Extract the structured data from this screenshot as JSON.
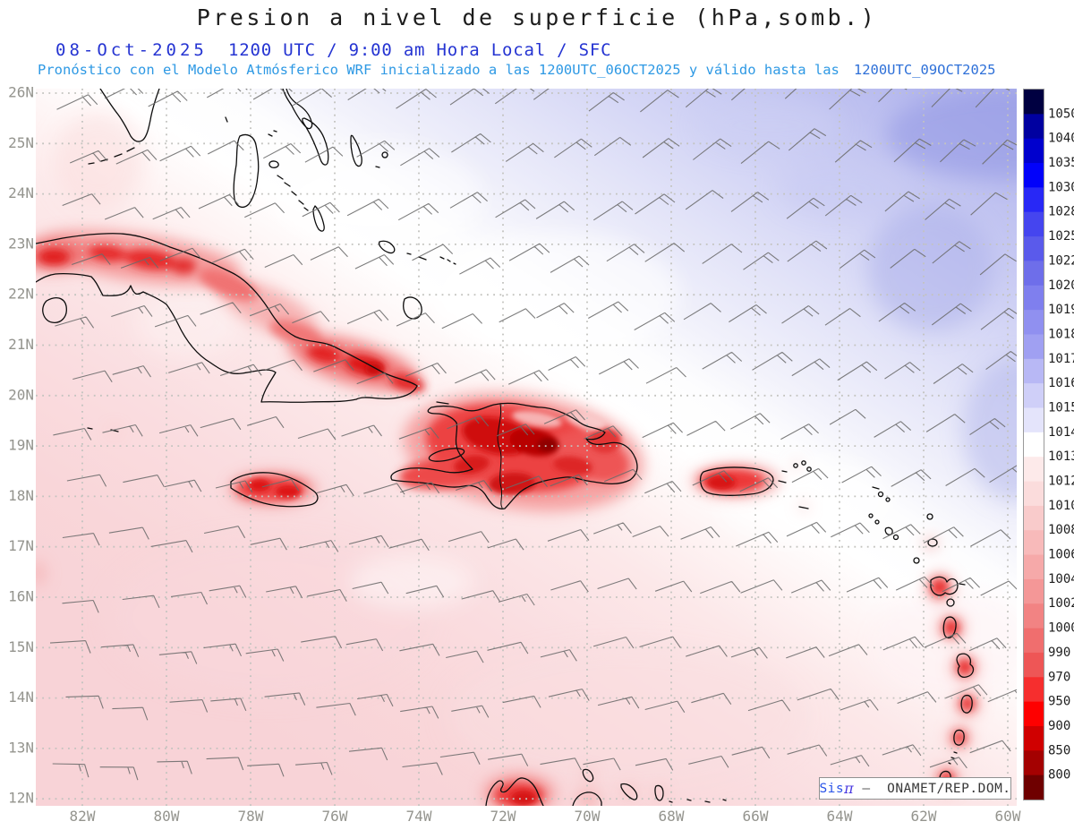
{
  "header": {
    "title": "Presion a nivel de superficie (hPa,somb.)",
    "date_label": "08-Oct-2025",
    "time_label": "1200 UTC / 9:00 am Hora Local / SFC",
    "forecast_text": "Pronóstico con el Modelo Atmósferico WRF inicializado a las 1200UTC_06OCT2025 y válido hasta las",
    "valid_until": "1200UTC_09OCT2025"
  },
  "colors": {
    "title": "#1c1c1c",
    "header_blue": "#2534d2",
    "forecast_cyan": "#2e99e4",
    "valid_blue": "#2e70d8",
    "axis_labels": "#94948e",
    "grid_dots": "#c3c3bf",
    "coastline": "#0d0d0d",
    "wind_barbs": "#6b6b6b",
    "colorbar_frame": "#9a9a9a",
    "logo_blue": "#2953e8",
    "logo_text": "#383838"
  },
  "map_axes": {
    "lat_ticks": [
      "26N",
      "25N",
      "24N",
      "23N",
      "22N",
      "21N",
      "20N",
      "19N",
      "18N",
      "17N",
      "16N",
      "15N",
      "14N",
      "13N",
      "12N"
    ],
    "lon_ticks": [
      "82W",
      "80W",
      "78W",
      "76W",
      "74W",
      "72W",
      "70W",
      "68W",
      "66W",
      "64W",
      "62W",
      "60W"
    ]
  },
  "colorbar": {
    "unit": "hPa",
    "tick_values": [
      1050,
      1040,
      1035,
      1030,
      1028,
      1025,
      1022,
      1020,
      1019,
      1018,
      1017,
      1016,
      1015,
      1014,
      1013,
      1012,
      1010,
      1008,
      1006,
      1004,
      1002,
      1000,
      990,
      970,
      950,
      900,
      850,
      800
    ],
    "segment_colors": [
      "#000041",
      "#0000a0",
      "#0000cd",
      "#0202fa",
      "#2828f6",
      "#4545ef",
      "#5a5aeb",
      "#6e6eea",
      "#7f7fee",
      "#9090f0",
      "#a0a0f2",
      "#b8b8f5",
      "#cfcff8",
      "#e4e4fb",
      "#ffffff",
      "#fdeaea",
      "#fbdcdc",
      "#f9cbcb",
      "#f8baba",
      "#f6a9a9",
      "#f49797",
      "#f28383",
      "#f06e6e",
      "#ee5656",
      "#f62e2e",
      "#fe0000",
      "#d00000",
      "#a40101",
      "#6f0000"
    ]
  },
  "wind_field": {
    "symbol": "wind barb",
    "rows": 13,
    "cols": 20
  },
  "logo": {
    "name_prefix": "Sis",
    "name_pi": "π",
    "separator": "–",
    "agency": "ONAMET/REP.DOM."
  }
}
